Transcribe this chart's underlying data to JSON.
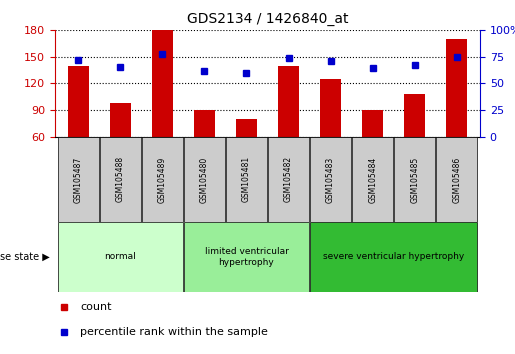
{
  "title": "GDS2134 / 1426840_at",
  "samples": [
    "GSM105487",
    "GSM105488",
    "GSM105489",
    "GSM105480",
    "GSM105481",
    "GSM105482",
    "GSM105483",
    "GSM105484",
    "GSM105485",
    "GSM105486"
  ],
  "counts": [
    140,
    98,
    180,
    90,
    80,
    140,
    125,
    90,
    108,
    170
  ],
  "percentiles": [
    72,
    65,
    78,
    62,
    60,
    74,
    71,
    64,
    67,
    75
  ],
  "ylim_left": [
    60,
    180
  ],
  "yticks_left": [
    60,
    90,
    120,
    150,
    180
  ],
  "ylim_right": [
    0,
    100
  ],
  "yticks_right": [
    0,
    25,
    50,
    75,
    100
  ],
  "bar_color": "#cc0000",
  "dot_color": "#0000cc",
  "bar_width": 0.5,
  "disease_groups": [
    {
      "label": "normal",
      "start": 0,
      "end": 3,
      "color": "#ccffcc"
    },
    {
      "label": "limited ventricular\nhypertrophy",
      "start": 3,
      "end": 6,
      "color": "#99ee99"
    },
    {
      "label": "severe ventricular hypertrophy",
      "start": 6,
      "end": 10,
      "color": "#33bb33"
    }
  ],
  "disease_state_label": "disease state",
  "legend_count_label": "count",
  "legend_pct_label": "percentile rank within the sample",
  "grid_color": "#000000",
  "tick_label_color_left": "#cc0000",
  "tick_label_color_right": "#0000cc",
  "sample_box_color": "#cccccc",
  "background_color": "#ffffff"
}
